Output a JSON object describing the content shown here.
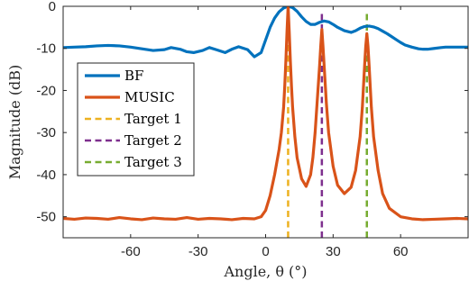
{
  "chart_data": {
    "type": "line",
    "title": "",
    "xlabel": "Angle, θ (°)",
    "ylabel": "Magnitude (dB)",
    "xlim": [
      -90,
      90
    ],
    "ylim": [
      -55,
      0
    ],
    "xticks": [
      -60,
      -30,
      0,
      30,
      60
    ],
    "yticks": [
      0,
      -10,
      -20,
      -30,
      -40,
      -50
    ],
    "grid": false,
    "legend_position": "left, middle",
    "series": [
      {
        "name": "BF",
        "color": "#0072BD",
        "style": "solid",
        "x": [
          -90,
          -85,
          -80,
          -75,
          -70,
          -65,
          -60,
          -55,
          -50,
          -45,
          -42,
          -38,
          -35,
          -32,
          -28,
          -25,
          -22,
          -18,
          -15,
          -12,
          -8,
          -5,
          -2,
          0,
          2,
          4,
          6,
          8,
          10,
          12,
          14,
          16,
          18,
          20,
          22,
          24,
          26,
          28,
          30,
          32,
          35,
          38,
          40,
          42,
          44,
          46,
          48,
          50,
          52,
          54,
          56,
          58,
          60,
          62,
          65,
          68,
          70,
          72,
          75,
          78,
          80,
          82,
          85,
          88,
          90
        ],
        "y": [
          -9.8,
          -9.7,
          -9.6,
          -9.4,
          -9.3,
          -9.4,
          -9.7,
          -10.1,
          -10.5,
          -10.3,
          -9.8,
          -10.2,
          -10.8,
          -11.0,
          -10.5,
          -9.8,
          -10.3,
          -11.0,
          -10.2,
          -9.6,
          -10.3,
          -12.0,
          -11.0,
          -8.0,
          -5.0,
          -2.8,
          -1.3,
          -0.4,
          0.0,
          -0.3,
          -1.2,
          -2.5,
          -3.6,
          -4.3,
          -4.3,
          -3.8,
          -3.5,
          -3.7,
          -4.3,
          -5.0,
          -5.8,
          -6.2,
          -5.8,
          -5.2,
          -4.8,
          -4.7,
          -4.9,
          -5.3,
          -5.9,
          -6.5,
          -7.2,
          -7.9,
          -8.6,
          -9.2,
          -9.7,
          -10.1,
          -10.2,
          -10.2,
          -10.0,
          -9.8,
          -9.7,
          -9.7,
          -9.7,
          -9.7,
          -9.7
        ]
      },
      {
        "name": "MUSIC",
        "color": "#D95319",
        "style": "solid",
        "x": [
          -90,
          -85,
          -80,
          -75,
          -70,
          -65,
          -60,
          -55,
          -50,
          -45,
          -40,
          -35,
          -30,
          -25,
          -20,
          -15,
          -10,
          -5,
          -2,
          0,
          2,
          4,
          6,
          7,
          8,
          8.5,
          9,
          9.5,
          10,
          10.5,
          11,
          11.5,
          12,
          13,
          14,
          16,
          18,
          20,
          21,
          22,
          23,
          24,
          24.5,
          25,
          25.5,
          26,
          27,
          28,
          30,
          32,
          35,
          38,
          40,
          42,
          43,
          44,
          44.5,
          45,
          45.5,
          46,
          47,
          48,
          50,
          52,
          55,
          60,
          65,
          70,
          75,
          80,
          85,
          90
        ],
        "y": [
          -50.4,
          -50.6,
          -50.3,
          -50.4,
          -50.6,
          -50.2,
          -50.5,
          -50.7,
          -50.3,
          -50.5,
          -50.6,
          -50.2,
          -50.6,
          -50.4,
          -50.5,
          -50.7,
          -50.4,
          -50.5,
          -50.0,
          -48.5,
          -45.0,
          -40.0,
          -34.0,
          -30.0,
          -24.0,
          -19.0,
          -13.0,
          -6.0,
          0.0,
          -6.0,
          -13.0,
          -19.0,
          -24.0,
          -31.0,
          -36.0,
          -41.0,
          -42.8,
          -40.0,
          -36.0,
          -30.0,
          -22.0,
          -14.0,
          -9.5,
          -5.5,
          -9.5,
          -14.0,
          -23.0,
          -30.0,
          -38.0,
          -42.5,
          -44.5,
          -43.0,
          -39.0,
          -31.0,
          -24.0,
          -14.0,
          -9.5,
          -6.5,
          -9.5,
          -14.0,
          -24.0,
          -31.0,
          -39.0,
          -44.5,
          -48.0,
          -50.0,
          -50.5,
          -50.7,
          -50.6,
          -50.5,
          -50.4,
          -50.5
        ]
      },
      {
        "name": "Target 1",
        "color": "#EDB120",
        "style": "dashed",
        "x": [
          10,
          10
        ],
        "y": [
          -55,
          0
        ]
      },
      {
        "name": "Target 2",
        "color": "#7E2F8E",
        "style": "dashed",
        "x": [
          25,
          25
        ],
        "y": [
          -55,
          -1
        ]
      },
      {
        "name": "Target 3",
        "color": "#77AC30",
        "style": "dashed",
        "x": [
          45,
          45
        ],
        "y": [
          -55,
          -1
        ]
      }
    ]
  }
}
